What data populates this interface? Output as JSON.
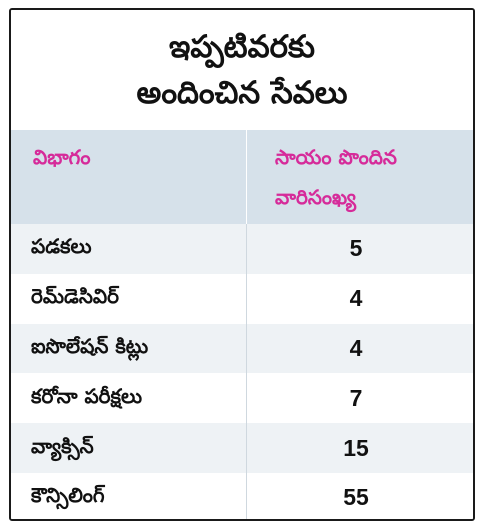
{
  "title": {
    "line1": "ఇప్పటివరకు",
    "line2": "అందించిన సేవలు"
  },
  "table": {
    "header": {
      "col1": "విభాగం",
      "col2_line1": "సాయం పొందిన",
      "col2_line2": "వారిసంఖ్య"
    },
    "rows": [
      {
        "label": "పడకలు",
        "value": "5"
      },
      {
        "label": "రెమ్‌డెసివిర్",
        "value": "4"
      },
      {
        "label": "ఐసొలేషన్ కిట్లు",
        "value": "4"
      },
      {
        "label": "కరోనా పరీక్షలు",
        "value": "7"
      },
      {
        "label": "వ్యాక్సిన్",
        "value": "15"
      },
      {
        "label": "కౌన్సిలింగ్",
        "value": "55"
      }
    ]
  },
  "colors": {
    "header_bg": "#d6e1ea",
    "header_text": "#d62b9a",
    "row_alt_bg": "#eef2f5",
    "border": "#1a1a1a"
  }
}
